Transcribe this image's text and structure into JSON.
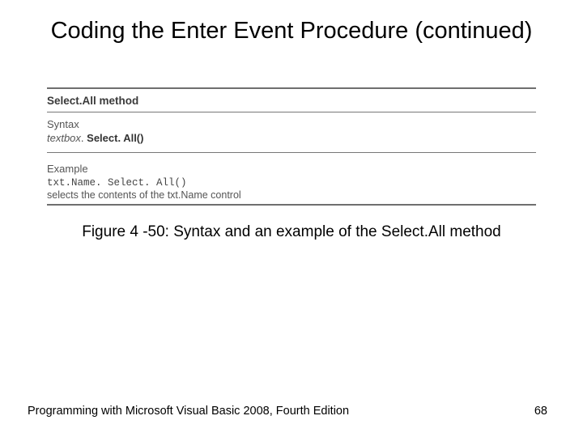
{
  "title": "Coding the Enter Event Procedure (continued)",
  "figure": {
    "method_heading": "Select.All method",
    "syntax_label": "Syntax",
    "syntax_prefix_italic": "textbox",
    "syntax_dot": ". ",
    "syntax_bold": "Select. All()",
    "example_label": "Example",
    "code": "txt.Name. Select. All()",
    "description": "selects the contents of the txt.Name control"
  },
  "caption": "Figure 4 -50: Syntax and an example of the Select.All method",
  "footer_left": "Programming with Microsoft Visual Basic 2008, Fourth Edition",
  "page_number": "68"
}
